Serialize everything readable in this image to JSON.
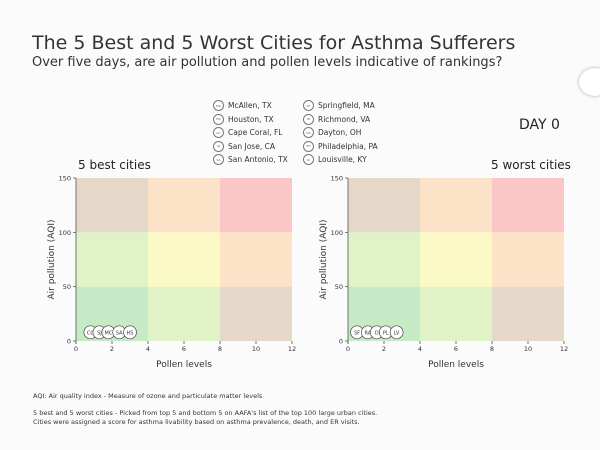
{
  "title": "The 5 Best and 5 Worst Cities for Asthma Sufferers",
  "subtitle": "Over five days, are air pollution and pollen levels indicative of rankings?",
  "legend": {
    "best": [
      {
        "code": "MA",
        "name": "McAllen, TX"
      },
      {
        "code": "HO",
        "name": "Houston, TX"
      },
      {
        "code": "CC",
        "name": "Cape Coral, FL"
      },
      {
        "code": "SJ",
        "name": "San Jose, CA"
      },
      {
        "code": "SA",
        "name": "San Antonio, TX"
      }
    ],
    "worst": [
      {
        "code": "SF",
        "name": "Springfield, MA"
      },
      {
        "code": "RI",
        "name": "Richmond, VA"
      },
      {
        "code": "DA",
        "name": "Dayton, OH"
      },
      {
        "code": "PH",
        "name": "Philadelphia, PA"
      },
      {
        "code": "LV",
        "name": "Louisville, KY"
      }
    ]
  },
  "day_label": "DAY 0",
  "colors": {
    "green": "#c6eac6",
    "light_green": "#e0f3c6",
    "yellow": "#fbfac6",
    "orange": "#fce2c6",
    "brown": "#e6d8c9",
    "red": "#fbc6c6",
    "marker_stroke": "#444444"
  },
  "chart_data": [
    {
      "type": "scatter",
      "title": "5 best cities",
      "xlabel": "Pollen levels",
      "ylabel": "Air pollution (AQI)",
      "xlim": [
        0,
        12
      ],
      "ylim": [
        0,
        150
      ],
      "xticks": [
        0,
        2,
        4,
        6,
        8,
        10,
        12
      ],
      "yticks": [
        0,
        50,
        100,
        150
      ],
      "points": [
        {
          "label": "CC",
          "x": 0.8,
          "y": 8
        },
        {
          "label": "SJ",
          "x": 1.3,
          "y": 8
        },
        {
          "label": "MC",
          "x": 1.8,
          "y": 8
        },
        {
          "label": "SA",
          "x": 2.4,
          "y": 8
        },
        {
          "label": "HS",
          "x": 3.0,
          "y": 8
        }
      ]
    },
    {
      "type": "scatter",
      "title": "5 worst cities",
      "xlabel": "Pollen levels",
      "ylabel": "Air pollution (AQI)",
      "xlim": [
        0,
        12
      ],
      "ylim": [
        0,
        150
      ],
      "xticks": [
        0,
        2,
        4,
        6,
        8,
        10,
        12
      ],
      "yticks": [
        0,
        50,
        100,
        150
      ],
      "points": [
        {
          "label": "SF",
          "x": 0.5,
          "y": 8
        },
        {
          "label": "RA",
          "x": 1.1,
          "y": 8
        },
        {
          "label": "D",
          "x": 1.6,
          "y": 8
        },
        {
          "label": "PL",
          "x": 2.1,
          "y": 8
        },
        {
          "label": "LV",
          "x": 2.7,
          "y": 8
        }
      ]
    }
  ],
  "footer": {
    "line1": "AQI: Air quality index - Measure of ozone and particulate matter levels",
    "line2": "5 best and 5 worst cities - Picked from top 5 and bottom 5 on AAFA's list of the top 100 large urban cities.",
    "line3": "Cities were assigned a score for asthma livability based on asthma prevalence, death, and ER visits."
  }
}
